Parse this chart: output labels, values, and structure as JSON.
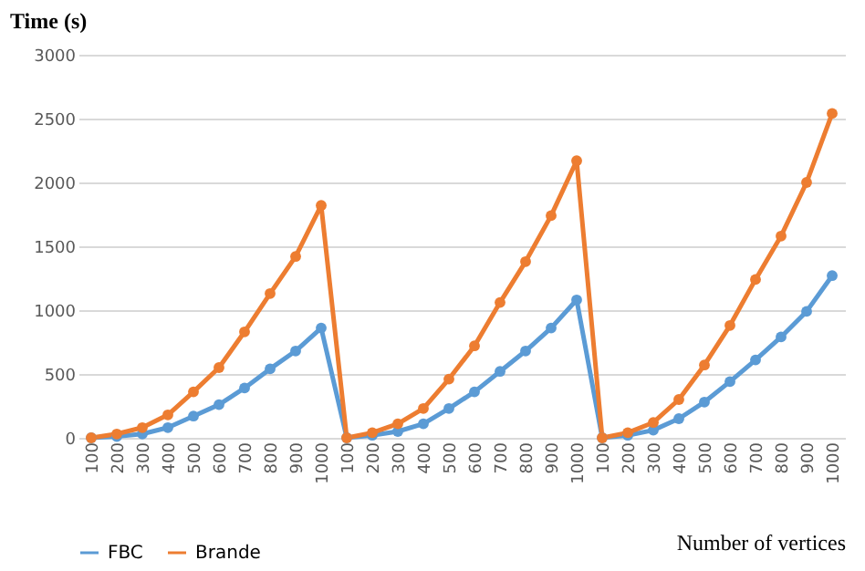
{
  "chart_data": {
    "type": "line",
    "xlabel": "Number of vertices",
    "ylabel": "Time (s)",
    "categories": [
      "100",
      "200",
      "300",
      "400",
      "500",
      "600",
      "700",
      "800",
      "900",
      "1000",
      "100",
      "200",
      "300",
      "400",
      "500",
      "600",
      "700",
      "800",
      "900",
      "1000",
      "100",
      "200",
      "300",
      "400",
      "500",
      "600",
      "700",
      "800",
      "900",
      "1000"
    ],
    "series": [
      {
        "name": "FBC",
        "color": "#5b9bd5",
        "values": [
          0,
          10,
          30,
          80,
          170,
          260,
          390,
          540,
          680,
          860,
          0,
          20,
          50,
          110,
          230,
          360,
          520,
          680,
          860,
          1080,
          0,
          20,
          60,
          150,
          280,
          440,
          610,
          790,
          990,
          1270
        ]
      },
      {
        "name": "Brande",
        "color": "#ed7d31",
        "values": [
          0,
          30,
          80,
          180,
          360,
          550,
          830,
          1130,
          1420,
          1820,
          0,
          40,
          110,
          230,
          460,
          720,
          1060,
          1380,
          1740,
          2170,
          0,
          40,
          120,
          300,
          570,
          880,
          1240,
          1580,
          2000,
          2540
        ]
      }
    ],
    "ylim": [
      0,
      3000
    ],
    "yticks": [
      0,
      500,
      1000,
      1500,
      2000,
      2500,
      3000
    ],
    "grid": "y",
    "legend": "bottom",
    "marker": "circle",
    "line_style": "solid"
  }
}
